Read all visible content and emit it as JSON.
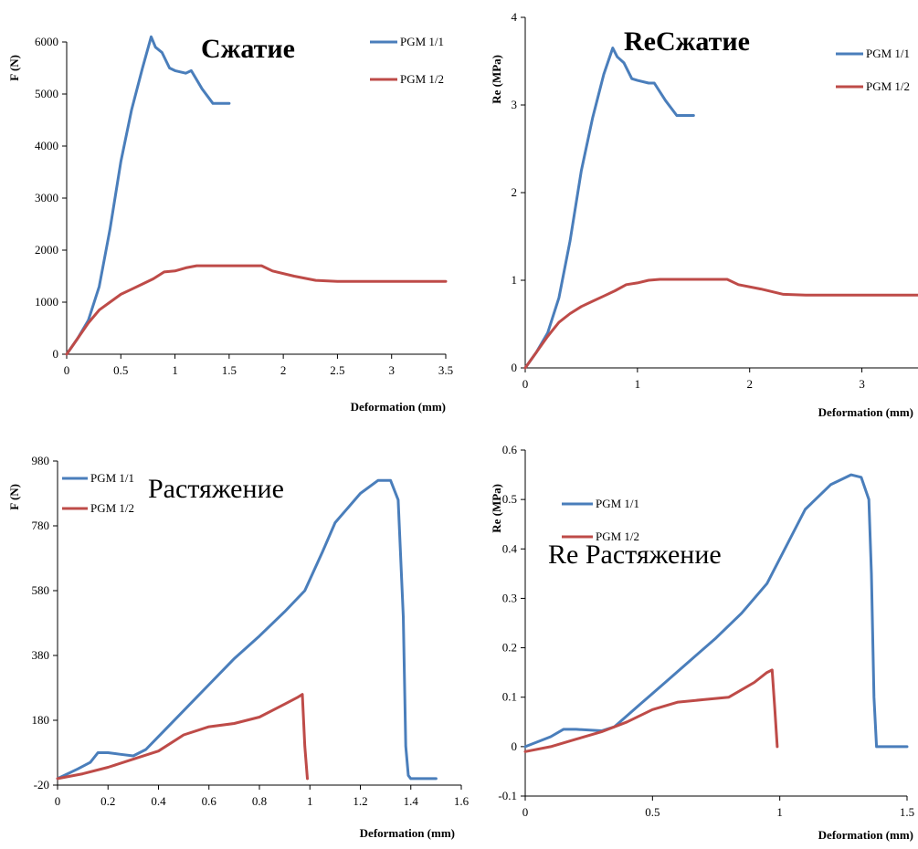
{
  "colors": {
    "blue": "#4a7ebb",
    "red": "#be4b48"
  },
  "chart_data": [
    {
      "type": "line",
      "title": "Сжатие",
      "xlabel": "Deformation (mm)",
      "ylabel": "F (N)",
      "xlim": [
        0,
        3.5
      ],
      "ylim": [
        0,
        6000
      ],
      "xticks": [
        "0",
        "0.5",
        "1",
        "1.5",
        "2",
        "2.5",
        "3",
        "3.5"
      ],
      "yticks": [
        "0",
        "1000",
        "2000",
        "3000",
        "4000",
        "5000",
        "6000"
      ],
      "legend_position": "top-right",
      "series": [
        {
          "name": "PGM 1/1",
          "color": "#4a7ebb",
          "x": [
            0,
            0.1,
            0.2,
            0.3,
            0.4,
            0.5,
            0.6,
            0.7,
            0.78,
            0.82,
            0.88,
            0.95,
            1.0,
            1.1,
            1.15,
            1.25,
            1.35,
            1.5
          ],
          "y": [
            0,
            300,
            650,
            1300,
            2400,
            3700,
            4700,
            5500,
            6100,
            5900,
            5800,
            5500,
            5450,
            5400,
            5450,
            5100,
            4820,
            4820
          ]
        },
        {
          "name": "PGM 1/2",
          "color": "#be4b48",
          "x": [
            0,
            0.1,
            0.2,
            0.3,
            0.4,
            0.5,
            0.6,
            0.7,
            0.8,
            0.9,
            1.0,
            1.1,
            1.2,
            1.5,
            1.8,
            1.9,
            2.1,
            2.3,
            2.5,
            3.0,
            3.5
          ],
          "y": [
            0,
            300,
            600,
            850,
            1000,
            1150,
            1250,
            1350,
            1450,
            1580,
            1600,
            1660,
            1700,
            1700,
            1700,
            1600,
            1500,
            1420,
            1400,
            1400,
            1400
          ]
        }
      ]
    },
    {
      "type": "line",
      "title": "ReСжатие",
      "xlabel": "Deformation (mm)",
      "ylabel": "Re (MPa)",
      "xlim": [
        0,
        3.5
      ],
      "ylim": [
        0,
        4
      ],
      "xticks": [
        "0",
        "1",
        "2",
        "3"
      ],
      "yticks": [
        "0",
        "1",
        "2",
        "3",
        "4"
      ],
      "legend_position": "top-right",
      "series": [
        {
          "name": "PGM 1/1",
          "color": "#4a7ebb",
          "x": [
            0,
            0.1,
            0.2,
            0.3,
            0.4,
            0.5,
            0.6,
            0.7,
            0.78,
            0.82,
            0.88,
            0.95,
            1.0,
            1.1,
            1.15,
            1.25,
            1.35,
            1.5
          ],
          "y": [
            0,
            0.18,
            0.4,
            0.8,
            1.45,
            2.25,
            2.85,
            3.35,
            3.65,
            3.55,
            3.48,
            3.3,
            3.28,
            3.25,
            3.25,
            3.05,
            2.88,
            2.88
          ]
        },
        {
          "name": "PGM 1/2",
          "color": "#be4b48",
          "x": [
            0,
            0.1,
            0.2,
            0.3,
            0.4,
            0.5,
            0.6,
            0.7,
            0.8,
            0.9,
            1.0,
            1.1,
            1.2,
            1.5,
            1.8,
            1.9,
            2.1,
            2.3,
            2.5,
            3.0,
            3.5
          ],
          "y": [
            0,
            0.18,
            0.36,
            0.52,
            0.62,
            0.7,
            0.76,
            0.82,
            0.88,
            0.95,
            0.97,
            1.0,
            1.01,
            1.01,
            1.01,
            0.95,
            0.9,
            0.84,
            0.83,
            0.83,
            0.83
          ]
        }
      ]
    },
    {
      "type": "line",
      "title": "Растяжение",
      "xlabel": "Deformation (mm)",
      "ylabel": "F (N)",
      "xlim": [
        0,
        1.6
      ],
      "ylim": [
        -20,
        980
      ],
      "xticks": [
        "0",
        "0.2",
        "0.4",
        "0.6",
        "0.8",
        "1",
        "1.2",
        "1.4",
        "1.6"
      ],
      "yticks": [
        "-20",
        "180",
        "380",
        "580",
        "780",
        "980"
      ],
      "legend_position": "top-left",
      "series": [
        {
          "name": "PGM 1/1",
          "color": "#4a7ebb",
          "x": [
            0,
            0.08,
            0.13,
            0.16,
            0.2,
            0.25,
            0.3,
            0.35,
            0.4,
            0.5,
            0.6,
            0.7,
            0.8,
            0.9,
            0.98,
            1.05,
            1.1,
            1.2,
            1.27,
            1.32,
            1.35,
            1.37,
            1.38,
            1.39,
            1.4,
            1.5
          ],
          "y": [
            0,
            30,
            50,
            80,
            80,
            75,
            70,
            90,
            130,
            210,
            290,
            370,
            440,
            515,
            580,
            700,
            790,
            880,
            920,
            920,
            860,
            500,
            100,
            10,
            0,
            0
          ]
        },
        {
          "name": "PGM 1/2",
          "color": "#be4b48",
          "x": [
            0,
            0.1,
            0.2,
            0.3,
            0.4,
            0.5,
            0.6,
            0.7,
            0.8,
            0.9,
            0.95,
            0.97,
            0.98,
            0.99
          ],
          "y": [
            0,
            15,
            35,
            60,
            85,
            135,
            160,
            170,
            190,
            230,
            250,
            260,
            100,
            0
          ]
        }
      ]
    },
    {
      "type": "line",
      "title": "Re Растяжение",
      "xlabel": "Deformation (mm)",
      "ylabel": "Re (MPa)",
      "xlim": [
        0,
        1.5
      ],
      "ylim": [
        -0.1,
        0.6
      ],
      "xticks": [
        "0",
        "0.5",
        "1",
        "1.5"
      ],
      "yticks": [
        "-0.1",
        "0",
        "0.1",
        "0.2",
        "0.3",
        "0.4",
        "0.5",
        "0.6"
      ],
      "legend_position": "top-left",
      "series": [
        {
          "name": "PGM 1/1",
          "color": "#4a7ebb",
          "x": [
            0,
            0.1,
            0.15,
            0.2,
            0.3,
            0.35,
            0.45,
            0.55,
            0.65,
            0.75,
            0.85,
            0.95,
            1.05,
            1.1,
            1.2,
            1.28,
            1.32,
            1.35,
            1.36,
            1.37,
            1.38,
            1.4,
            1.5
          ],
          "y": [
            0,
            0.02,
            0.035,
            0.035,
            0.032,
            0.04,
            0.085,
            0.13,
            0.175,
            0.22,
            0.27,
            0.33,
            0.43,
            0.48,
            0.53,
            0.55,
            0.545,
            0.5,
            0.35,
            0.1,
            0.0,
            0.0,
            0.0
          ]
        },
        {
          "name": "PGM 1/2",
          "color": "#be4b48",
          "x": [
            0,
            0.1,
            0.2,
            0.3,
            0.4,
            0.5,
            0.6,
            0.7,
            0.8,
            0.9,
            0.95,
            0.97,
            0.98,
            0.99
          ],
          "y": [
            -0.01,
            0.0,
            0.015,
            0.03,
            0.05,
            0.075,
            0.09,
            0.095,
            0.1,
            0.13,
            0.15,
            0.155,
            0.08,
            0.0
          ]
        }
      ]
    }
  ]
}
